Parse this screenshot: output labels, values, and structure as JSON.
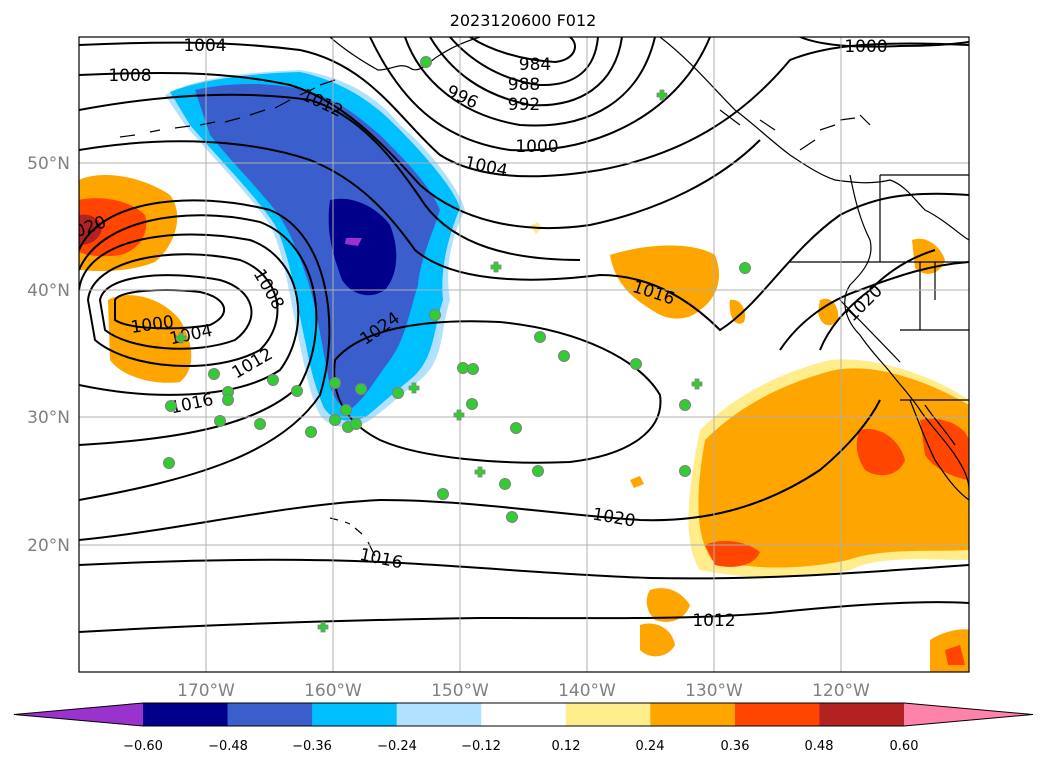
{
  "title": "2023120600 F012",
  "lat_ticks": [
    {
      "label": "50°N",
      "value": 50
    },
    {
      "label": "40°N",
      "value": 40
    },
    {
      "label": "30°N",
      "value": 30
    },
    {
      "label": "20°N",
      "value": 20
    }
  ],
  "lon_ticks": [
    {
      "label": "170°W",
      "value": -170
    },
    {
      "label": "160°W",
      "value": -160
    },
    {
      "label": "150°W",
      "value": -150
    },
    {
      "label": "140°W",
      "value": -140
    },
    {
      "label": "130°W",
      "value": -130
    },
    {
      "label": "120°W",
      "value": -120
    }
  ],
  "colorbar": {
    "colors": [
      "#9a32cd",
      "#00008b",
      "#3a5fcd",
      "#00bfff",
      "#b0e2ff",
      "#ffffff",
      "#ffec8b",
      "#ffa500",
      "#ff4500",
      "#b22222",
      "#ff82ab"
    ],
    "labels": [
      "−0.60",
      "−0.48",
      "−0.36",
      "−0.24",
      "−0.12",
      "0.12",
      "0.24",
      "0.36",
      "0.48",
      "0.60"
    ]
  },
  "contour_labels": [
    {
      "text": "1004"
    },
    {
      "text": "1008"
    },
    {
      "text": "984"
    },
    {
      "text": "988"
    },
    {
      "text": "992"
    },
    {
      "text": "996"
    },
    {
      "text": "1012"
    },
    {
      "text": "1000"
    },
    {
      "text": "1000"
    },
    {
      "text": "1004"
    },
    {
      "text": "020"
    },
    {
      "text": "1008"
    },
    {
      "text": "1000"
    },
    {
      "text": "1004"
    },
    {
      "text": "1012"
    },
    {
      "text": "1016"
    },
    {
      "text": "1016"
    },
    {
      "text": "1024"
    },
    {
      "text": "1020"
    },
    {
      "text": "1020"
    },
    {
      "text": "1016"
    },
    {
      "text": "1012"
    }
  ],
  "colors": {
    "grid": "#b0b0b0",
    "observation_marker": "#32cd32",
    "tick_label": "#808080"
  }
}
